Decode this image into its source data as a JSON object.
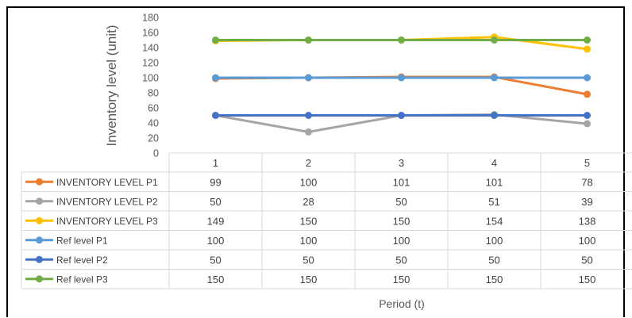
{
  "chart_data": {
    "type": "line",
    "ylabel": "Inventory level (unit)",
    "xlabel": "Period (t)",
    "categories": [
      "1",
      "2",
      "3",
      "4",
      "5"
    ],
    "ylim": [
      0,
      180
    ],
    "yticks": [
      0,
      20,
      40,
      60,
      80,
      100,
      120,
      140,
      160,
      180
    ],
    "grid": false,
    "legend": "data-table",
    "series": [
      {
        "name": "INVENTORY LEVEL P1",
        "color": "#ED7D31",
        "values": [
          99,
          100,
          101,
          101,
          78
        ]
      },
      {
        "name": "INVENTORY LEVEL P2",
        "color": "#A5A5A5",
        "values": [
          50,
          28,
          50,
          51,
          39
        ]
      },
      {
        "name": "INVENTORY LEVEL P3",
        "color": "#FFC000",
        "values": [
          149,
          150,
          150,
          154,
          138
        ]
      },
      {
        "name": "Ref level P1",
        "color": "#5B9BD5",
        "values": [
          100,
          100,
          100,
          100,
          100
        ]
      },
      {
        "name": "Ref level P2",
        "color": "#4472C4",
        "values": [
          50,
          50,
          50,
          50,
          50
        ]
      },
      {
        "name": "Ref level P3",
        "color": "#70AD47",
        "values": [
          150,
          150,
          150,
          150,
          150
        ]
      }
    ]
  }
}
